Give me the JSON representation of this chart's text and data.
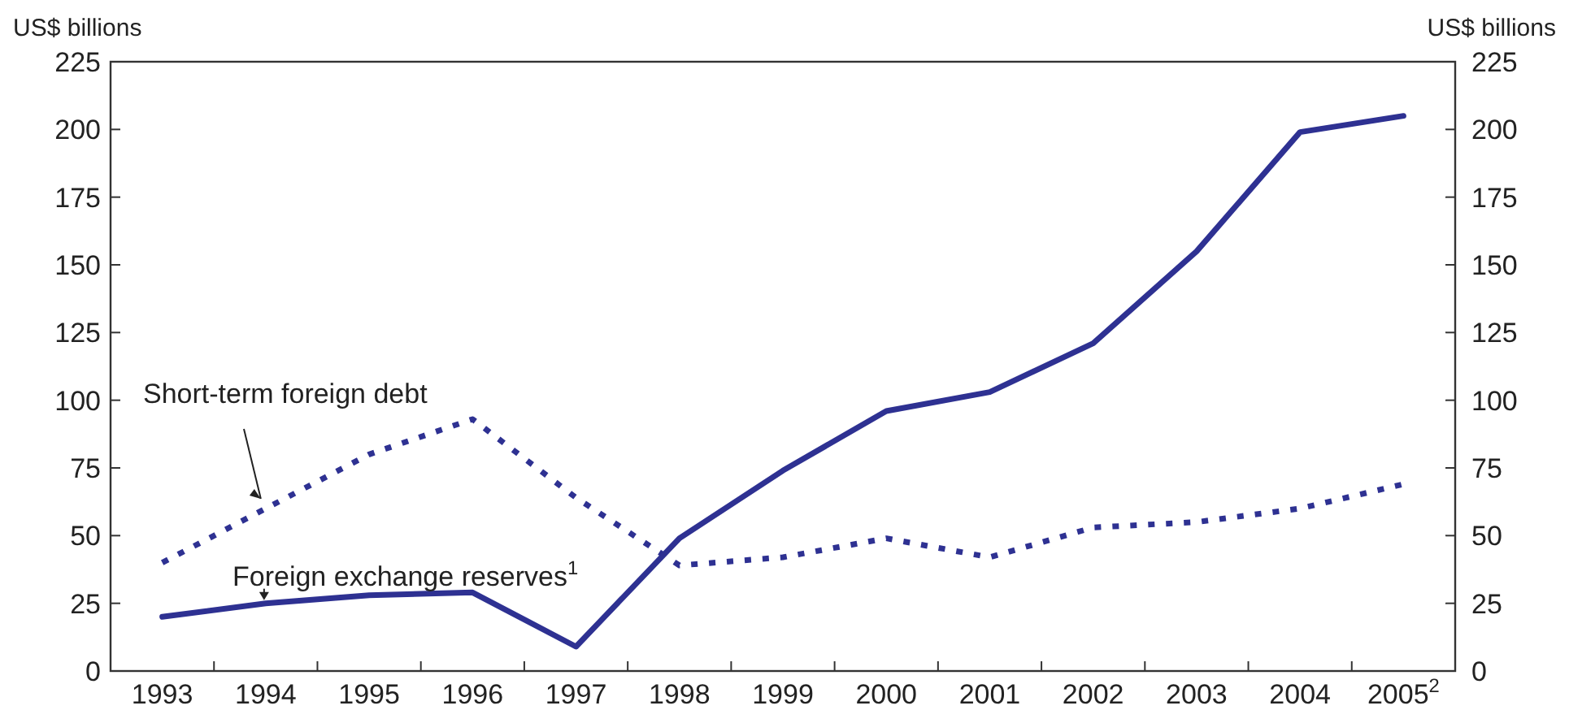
{
  "chart_data": {
    "type": "line",
    "categories": [
      "1993",
      "1994",
      "1995",
      "1996",
      "1997",
      "1998",
      "1999",
      "2000",
      "2001",
      "2002",
      "2003",
      "2004",
      "2005$^{2}$"
    ],
    "series": [
      {
        "name": "Short-term foreign debt",
        "color": "#2e3192",
        "line_style": "dotted",
        "values": [
          40,
          60,
          80,
          93,
          64,
          39,
          42,
          49,
          42,
          53,
          55,
          60,
          69
        ]
      },
      {
        "name": "Foreign exchange reserves$^{1}$",
        "color": "#2e3192",
        "line_style": "solid",
        "values": [
          20,
          25,
          28,
          29,
          9,
          49,
          74,
          96,
          103,
          121,
          155,
          199,
          205
        ]
      }
    ],
    "ylabel": "US$ billions",
    "y2label": "US$ billions",
    "ylim": [
      0,
      225
    ],
    "yticks": [
      0,
      25,
      50,
      75,
      100,
      125,
      150,
      175,
      200,
      225
    ],
    "y2lim": [
      0,
      225
    ],
    "y2ticks": [
      0,
      25,
      50,
      75,
      100,
      125,
      150,
      175,
      200,
      225
    ],
    "grid": false,
    "marker": "none"
  }
}
